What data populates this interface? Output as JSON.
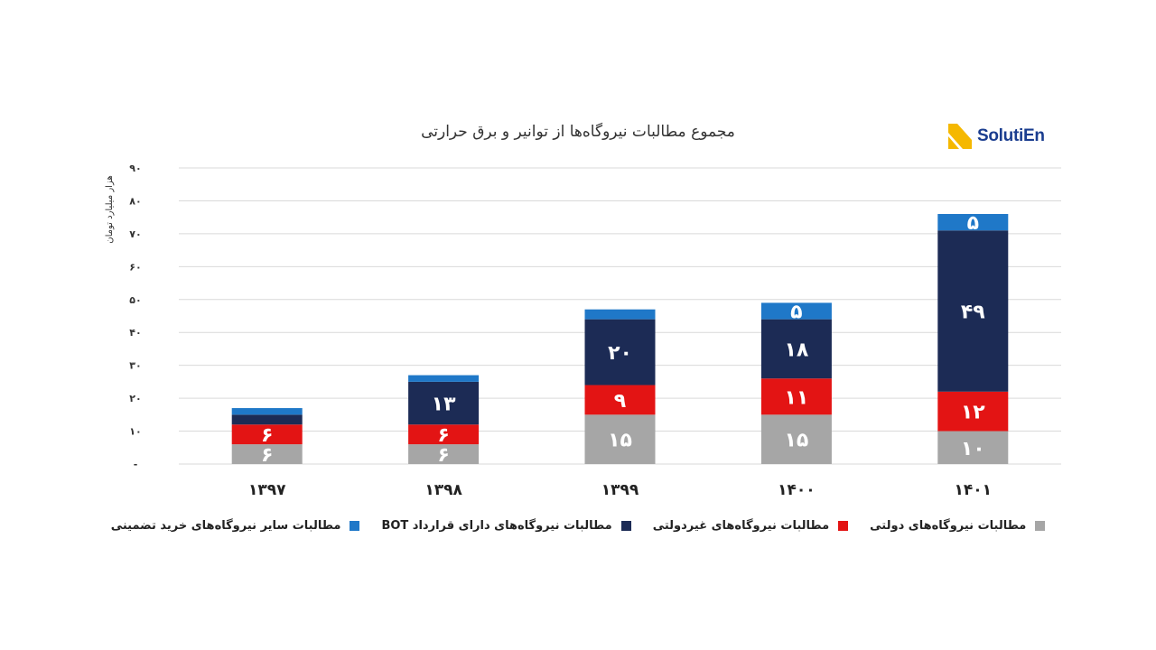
{
  "logo": {
    "text": "SolutiEn"
  },
  "chart_data": {
    "type": "bar",
    "stacked": true,
    "title": "مجموع مطالبات نیروگاه‌ها از توانیر و برق حرارتی",
    "ylabel": "هزار میلیارد تومان",
    "xlabel": "",
    "ylim": [
      0,
      90
    ],
    "yticks": [
      0,
      10,
      20,
      30,
      40,
      50,
      60,
      70,
      80,
      90
    ],
    "ytick_labels": [
      "-",
      "۱۰",
      "۲۰",
      "۳۰",
      "۴۰",
      "۵۰",
      "۶۰",
      "۷۰",
      "۸۰",
      "۹۰"
    ],
    "grid": true,
    "legend_position": "bottom",
    "categories": [
      "۱۳۹۷",
      "۱۳۹۸",
      "۱۳۹۹",
      "۱۴۰۰",
      "۱۴۰۱"
    ],
    "series": [
      {
        "name": "مطالبات نیروگاه‌های دولتی",
        "color": "#a6a6a6",
        "values": [
          6,
          6,
          15,
          15,
          10
        ],
        "labels": [
          "۶",
          "۶",
          "۱۵",
          "۱۵",
          "۱۰"
        ]
      },
      {
        "name": "مطالبات نیروگاه‌های غیردولتی",
        "color": "#e31414",
        "values": [
          6,
          6,
          9,
          11,
          12
        ],
        "labels": [
          "۶",
          "۶",
          "۹",
          "۱۱",
          "۱۲"
        ]
      },
      {
        "name": "مطالبات نیروگاه‌های دارای قرارداد BOT",
        "color": "#1c2b55",
        "values": [
          3,
          13,
          20,
          18,
          49
        ],
        "labels": [
          "",
          "۱۳",
          "۲۰",
          "۱۸",
          "۴۹"
        ]
      },
      {
        "name": "مطالبات سایر نیروگاه‌های خرید تضمینی",
        "color": "#1f78c8",
        "values": [
          2,
          2,
          3,
          5,
          5
        ],
        "labels": [
          "",
          "",
          "",
          "۵",
          "۵"
        ]
      }
    ]
  }
}
